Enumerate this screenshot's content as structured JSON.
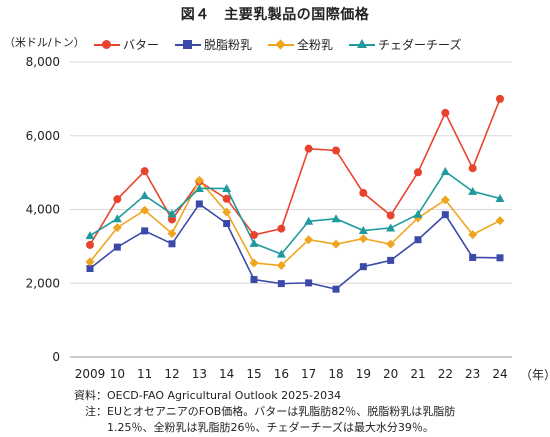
{
  "title": "図４　主要乳製品の国際価格",
  "unit_label": "（米ドル/トン）",
  "x_unit_label": "（年）",
  "notes": [
    "資料：OECD-FAO Agricultural Outlook 2025-2034",
    "　注：EUとオセアニアのFOB価格。バターは乳脂肪82％、脱脂粉乳は乳脂肪",
    "　　　1.25％、全粉乳は乳脂肪26％、チェダーチーズは最大水分39％。"
  ],
  "chart_data": {
    "type": "line",
    "x": [
      "2009",
      "10",
      "11",
      "12",
      "13",
      "14",
      "15",
      "16",
      "17",
      "18",
      "19",
      "20",
      "21",
      "22",
      "23",
      "24"
    ],
    "ylim": [
      0,
      8000
    ],
    "yticks": [
      "0",
      "2,000",
      "4,000",
      "6,000",
      "8,000"
    ],
    "ytick_values": [
      0,
      2000,
      4000,
      6000,
      8000
    ],
    "grid": "horizontal",
    "legend_position": "top",
    "series": [
      {
        "name": "バター",
        "color": "#e8432d",
        "marker": "circle",
        "values": [
          3040,
          4280,
          5040,
          3730,
          4760,
          4290,
          3310,
          3480,
          5650,
          5600,
          4450,
          3840,
          5010,
          6620,
          5120,
          7000
        ]
      },
      {
        "name": "脱脂粉乳",
        "color": "#3b4aa8",
        "marker": "square",
        "values": [
          2400,
          2980,
          3420,
          3070,
          4150,
          3620,
          2100,
          1990,
          2010,
          1840,
          2450,
          2620,
          3180,
          3860,
          2700,
          2690
        ]
      },
      {
        "name": "全粉乳",
        "color": "#f0a51e",
        "marker": "diamond",
        "values": [
          2580,
          3510,
          3980,
          3350,
          4790,
          3930,
          2550,
          2480,
          3180,
          3060,
          3210,
          3060,
          3770,
          4260,
          3320,
          3700
        ]
      },
      {
        "name": "チェダーチーズ",
        "color": "#1f9a9e",
        "marker": "triangle",
        "values": [
          3290,
          3750,
          4380,
          3880,
          4570,
          4570,
          3080,
          2790,
          3680,
          3750,
          3430,
          3500,
          3870,
          5030,
          4490,
          4300
        ]
      }
    ]
  }
}
